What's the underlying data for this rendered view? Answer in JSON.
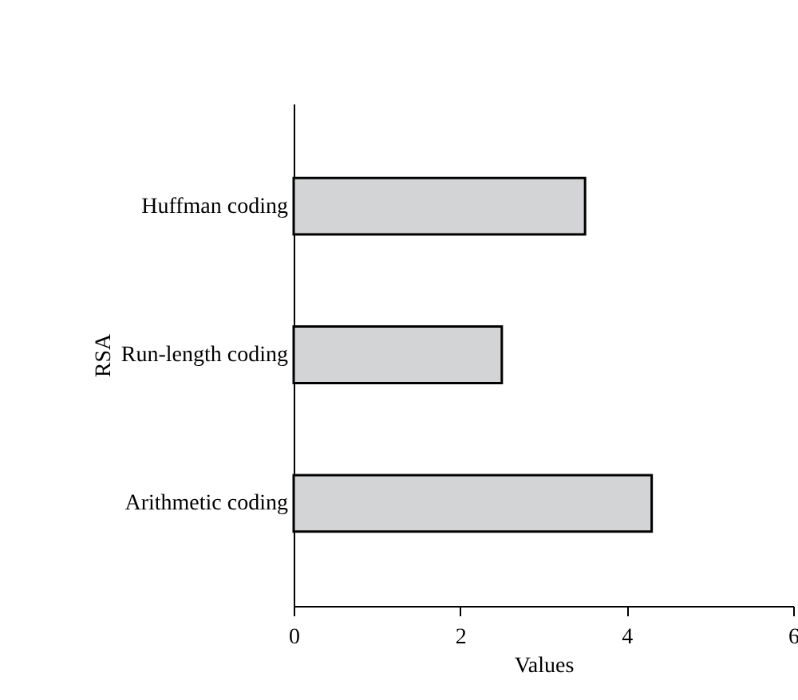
{
  "chart_data": {
    "type": "bar",
    "orientation": "horizontal",
    "xlabel": "Values",
    "ylabel": "RSA",
    "categories": [
      "Huffman coding",
      "Run-length coding",
      "Arithmetic coding"
    ],
    "values": [
      3.5,
      2.5,
      4.3
    ],
    "color": "#d3d4d6",
    "xlim": [
      0,
      6
    ],
    "xticks": [
      0,
      2,
      4,
      6
    ],
    "grid": false
  }
}
